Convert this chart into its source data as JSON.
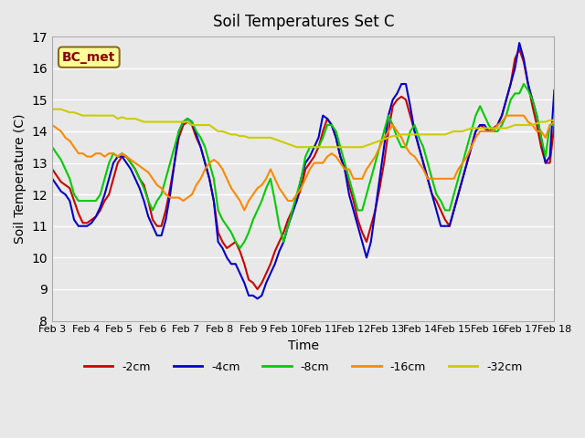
{
  "title": "Soil Temperatures Set C",
  "xlabel": "Time",
  "ylabel": "Soil Temperature (C)",
  "annotation": "BC_met",
  "ylim": [
    8.0,
    17.0
  ],
  "yticks": [
    8.0,
    9.0,
    10.0,
    11.0,
    12.0,
    13.0,
    14.0,
    15.0,
    16.0,
    17.0
  ],
  "xtick_labels": [
    "Feb 3",
    "Feb 4",
    "Feb 5",
    "Feb 6",
    "Feb 7",
    "Feb 8",
    "Feb 9",
    "Feb 10",
    "Feb 11",
    "Feb 12",
    "Feb 13",
    "Feb 14",
    "Feb 15",
    "Feb 16",
    "Feb 17",
    "Feb 18"
  ],
  "series": {
    "-2cm": {
      "color": "#cc0000",
      "lw": 1.5
    },
    "-4cm": {
      "color": "#0000cc",
      "lw": 1.5
    },
    "-8cm": {
      "color": "#00cc00",
      "lw": 1.5
    },
    "-16cm": {
      "color": "#ff8800",
      "lw": 1.5
    },
    "-32cm": {
      "color": "#cccc00",
      "lw": 1.5
    }
  },
  "data": {
    "-2cm": [
      12.8,
      12.6,
      12.4,
      12.3,
      12.2,
      11.8,
      11.4,
      11.1,
      11.1,
      11.2,
      11.3,
      11.5,
      11.8,
      12.0,
      12.5,
      13.0,
      13.2,
      13.2,
      13.0,
      12.8,
      12.5,
      12.3,
      11.8,
      11.2,
      11.0,
      11.0,
      11.5,
      12.2,
      13.0,
      13.8,
      14.2,
      14.3,
      14.2,
      13.8,
      13.5,
      13.0,
      12.5,
      11.8,
      10.8,
      10.5,
      10.3,
      10.4,
      10.5,
      10.2,
      9.8,
      9.3,
      9.2,
      9.0,
      9.2,
      9.5,
      9.8,
      10.2,
      10.5,
      10.8,
      11.2,
      11.5,
      11.8,
      12.2,
      12.8,
      13.0,
      13.2,
      13.5,
      14.0,
      14.4,
      14.2,
      13.8,
      13.2,
      12.8,
      12.3,
      11.8,
      11.2,
      10.8,
      10.5,
      11.0,
      11.5,
      12.2,
      13.0,
      14.0,
      14.8,
      15.0,
      15.1,
      15.0,
      14.5,
      14.0,
      13.5,
      13.0,
      12.5,
      12.0,
      11.8,
      11.5,
      11.2,
      11.0,
      11.5,
      12.0,
      12.5,
      13.0,
      13.5,
      14.0,
      14.2,
      14.1,
      14.0,
      14.1,
      14.2,
      14.5,
      15.0,
      15.5,
      16.3,
      16.6,
      16.2,
      15.5,
      14.8,
      14.2,
      13.5,
      13.0,
      13.0,
      14.2
    ],
    "-4cm": [
      12.5,
      12.3,
      12.1,
      12.0,
      11.8,
      11.2,
      11.0,
      11.0,
      11.0,
      11.1,
      11.3,
      11.6,
      12.0,
      12.5,
      13.0,
      13.2,
      13.2,
      13.0,
      12.8,
      12.5,
      12.2,
      11.8,
      11.3,
      11.0,
      10.7,
      10.7,
      11.2,
      12.0,
      13.0,
      14.0,
      14.3,
      14.4,
      14.3,
      13.9,
      13.5,
      13.0,
      12.5,
      11.8,
      10.5,
      10.3,
      10.0,
      9.8,
      9.8,
      9.5,
      9.2,
      8.8,
      8.8,
      8.7,
      8.8,
      9.2,
      9.5,
      9.8,
      10.2,
      10.5,
      11.0,
      11.4,
      11.8,
      12.5,
      13.0,
      13.2,
      13.5,
      13.8,
      14.5,
      14.4,
      14.2,
      13.8,
      13.2,
      12.8,
      12.0,
      11.5,
      11.0,
      10.5,
      10.0,
      10.5,
      11.5,
      12.5,
      13.5,
      14.5,
      15.0,
      15.2,
      15.5,
      15.5,
      14.8,
      14.0,
      13.5,
      13.0,
      12.5,
      12.0,
      11.5,
      11.0,
      11.0,
      11.0,
      11.5,
      12.0,
      12.5,
      13.0,
      13.5,
      14.0,
      14.2,
      14.2,
      14.0,
      14.0,
      14.2,
      14.5,
      15.0,
      15.5,
      16.0,
      16.8,
      16.3,
      15.5,
      15.0,
      14.5,
      13.8,
      13.0,
      13.2,
      15.3
    ],
    "-8cm": [
      13.5,
      13.3,
      13.1,
      12.8,
      12.5,
      12.0,
      11.8,
      11.8,
      11.8,
      11.8,
      11.8,
      12.0,
      12.5,
      13.0,
      13.3,
      13.2,
      13.3,
      13.2,
      13.0,
      12.8,
      12.5,
      12.2,
      11.8,
      11.5,
      11.8,
      12.0,
      12.5,
      13.0,
      13.5,
      14.0,
      14.3,
      14.4,
      14.3,
      14.0,
      13.8,
      13.5,
      13.0,
      12.5,
      11.5,
      11.2,
      11.0,
      10.8,
      10.5,
      10.3,
      10.5,
      10.8,
      11.2,
      11.5,
      11.8,
      12.2,
      12.5,
      11.8,
      11.0,
      10.5,
      11.0,
      11.5,
      12.0,
      12.5,
      13.2,
      13.5,
      13.5,
      13.5,
      13.8,
      14.2,
      14.2,
      14.0,
      13.5,
      13.0,
      12.5,
      12.0,
      11.5,
      11.5,
      12.0,
      12.5,
      13.0,
      13.5,
      14.0,
      14.5,
      14.2,
      13.8,
      13.5,
      13.5,
      14.0,
      14.2,
      13.8,
      13.5,
      13.0,
      12.5,
      12.0,
      11.8,
      11.5,
      11.5,
      12.0,
      12.5,
      13.0,
      13.5,
      14.0,
      14.5,
      14.8,
      14.5,
      14.2,
      14.0,
      14.0,
      14.2,
      14.5,
      15.0,
      15.2,
      15.2,
      15.5,
      15.3,
      15.0,
      14.5,
      13.8,
      13.2,
      14.2,
      14.2
    ],
    "-16cm": [
      14.2,
      14.1,
      14.0,
      13.8,
      13.7,
      13.5,
      13.3,
      13.3,
      13.2,
      13.2,
      13.3,
      13.3,
      13.2,
      13.3,
      13.3,
      13.2,
      13.3,
      13.2,
      13.1,
      13.0,
      12.9,
      12.8,
      12.7,
      12.5,
      12.3,
      12.2,
      12.0,
      11.9,
      11.9,
      11.9,
      11.8,
      11.9,
      12.0,
      12.3,
      12.5,
      12.8,
      13.0,
      13.1,
      13.0,
      12.8,
      12.5,
      12.2,
      12.0,
      11.8,
      11.5,
      11.8,
      12.0,
      12.2,
      12.3,
      12.5,
      12.8,
      12.5,
      12.2,
      12.0,
      11.8,
      11.8,
      12.0,
      12.2,
      12.5,
      12.8,
      13.0,
      13.0,
      13.0,
      13.2,
      13.3,
      13.2,
      13.0,
      12.8,
      12.8,
      12.5,
      12.5,
      12.5,
      12.8,
      13.0,
      13.2,
      13.5,
      13.8,
      14.0,
      14.2,
      14.0,
      13.8,
      13.5,
      13.3,
      13.2,
      13.0,
      12.8,
      12.5,
      12.5,
      12.5,
      12.5,
      12.5,
      12.5,
      12.5,
      12.8,
      13.0,
      13.2,
      13.5,
      13.8,
      14.0,
      14.0,
      14.0,
      14.0,
      14.2,
      14.3,
      14.5,
      14.5,
      14.5,
      14.5,
      14.5,
      14.3,
      14.2,
      14.0,
      14.0,
      13.8,
      14.2,
      14.3
    ],
    "-32cm": [
      14.7,
      14.7,
      14.7,
      14.65,
      14.6,
      14.6,
      14.55,
      14.5,
      14.5,
      14.5,
      14.5,
      14.5,
      14.5,
      14.5,
      14.5,
      14.4,
      14.45,
      14.4,
      14.4,
      14.4,
      14.35,
      14.3,
      14.3,
      14.3,
      14.3,
      14.3,
      14.3,
      14.3,
      14.3,
      14.3,
      14.3,
      14.3,
      14.2,
      14.2,
      14.2,
      14.2,
      14.2,
      14.1,
      14.0,
      14.0,
      13.95,
      13.9,
      13.9,
      13.85,
      13.85,
      13.8,
      13.8,
      13.8,
      13.8,
      13.8,
      13.8,
      13.75,
      13.7,
      13.65,
      13.6,
      13.55,
      13.5,
      13.5,
      13.5,
      13.5,
      13.5,
      13.5,
      13.5,
      13.5,
      13.5,
      13.5,
      13.5,
      13.5,
      13.5,
      13.5,
      13.5,
      13.5,
      13.55,
      13.6,
      13.65,
      13.7,
      13.75,
      13.8,
      13.85,
      13.85,
      13.9,
      13.9,
      13.9,
      13.9,
      13.9,
      13.9,
      13.9,
      13.9,
      13.9,
      13.9,
      13.9,
      13.95,
      14.0,
      14.0,
      14.0,
      14.05,
      14.1,
      14.1,
      14.1,
      14.1,
      14.1,
      14.1,
      14.1,
      14.1,
      14.1,
      14.15,
      14.2,
      14.2,
      14.2,
      14.2,
      14.2,
      14.25,
      14.3,
      14.3,
      14.35,
      14.35
    ]
  },
  "background_color": "#e8e8e8",
  "plot_bg_color": "#e8e8e8",
  "grid_color": "#ffffff"
}
